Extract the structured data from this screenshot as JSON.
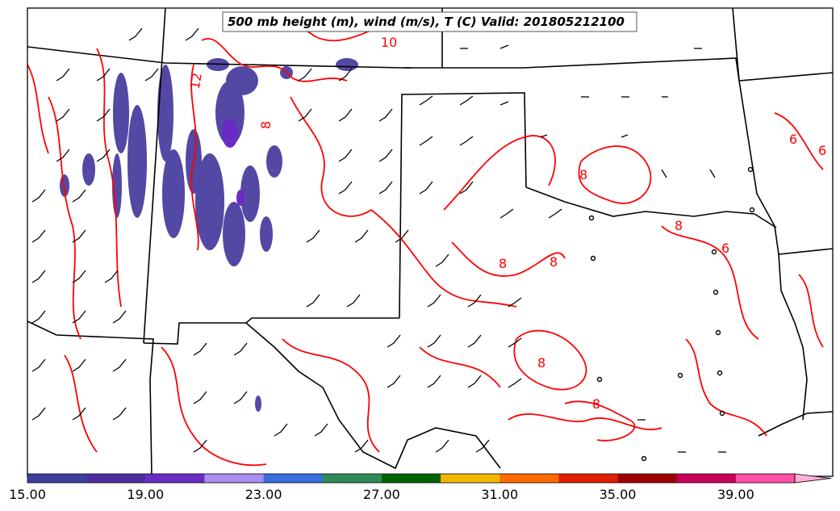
{
  "map": {
    "title": "500 mb height (m), wind (m/s), T (C) Valid: 201805212100",
    "contour_labels": [
      {
        "text": "10"
      },
      {
        "text": "12"
      },
      {
        "text": "8"
      },
      {
        "text": "8"
      },
      {
        "text": "8"
      },
      {
        "text": "8"
      },
      {
        "text": "8"
      },
      {
        "text": "8"
      },
      {
        "text": "8"
      },
      {
        "text": "6"
      },
      {
        "text": "6"
      },
      {
        "text": "6"
      }
    ],
    "colors": {
      "contour": "#ff0000",
      "border": "#000000",
      "background": "#ffffff"
    }
  },
  "colorbar": {
    "ticks": [
      "15.00",
      "19.00",
      "23.00",
      "27.00",
      "31.00",
      "35.00",
      "39.00"
    ],
    "colors": [
      "#3f3f9f",
      "#4b2fa0",
      "#6a2bc4",
      "#a98ff2",
      "#3a6fe0",
      "#2e8b57",
      "#006400",
      "#f0b800",
      "#ff6a00",
      "#e01e00",
      "#a00000",
      "#c8005a",
      "#ff4fa8",
      "#ffb0d8"
    ]
  }
}
